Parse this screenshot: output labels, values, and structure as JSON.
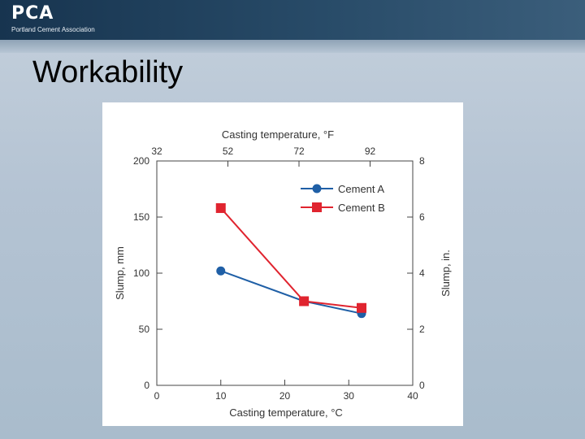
{
  "header": {
    "logo_text": "PCA",
    "logo_subtitle": "Portland Cement Association"
  },
  "slide": {
    "title": "Workability"
  },
  "colors": {
    "cement_a": "#1f5fa6",
    "cement_b": "#e0242f"
  },
  "chart_data": {
    "type": "line",
    "xlabel": "Casting temperature, °C",
    "xlim": [
      0,
      40
    ],
    "x_ticks": [
      0,
      10,
      20,
      30,
      40
    ],
    "x2label": "Casting temperature, °F",
    "x2_ticks": [
      32,
      52,
      72,
      92
    ],
    "ylabel": "Slump, mm",
    "ylim": [
      0,
      200
    ],
    "y_ticks": [
      0,
      50,
      100,
      150,
      200
    ],
    "y2label": "Slump, in.",
    "y2lim": [
      0,
      8
    ],
    "y2_ticks": [
      0,
      2,
      4,
      6,
      8
    ],
    "grid": false,
    "legend_position": "top-right",
    "series": [
      {
        "name": "Cement A",
        "marker": "circle",
        "color": "#1f5fa6",
        "x": [
          10,
          23,
          32
        ],
        "y": [
          102,
          75,
          64
        ]
      },
      {
        "name": "Cement B",
        "marker": "square",
        "color": "#e0242f",
        "x": [
          10,
          23,
          32
        ],
        "y": [
          158,
          75,
          69
        ]
      }
    ]
  }
}
